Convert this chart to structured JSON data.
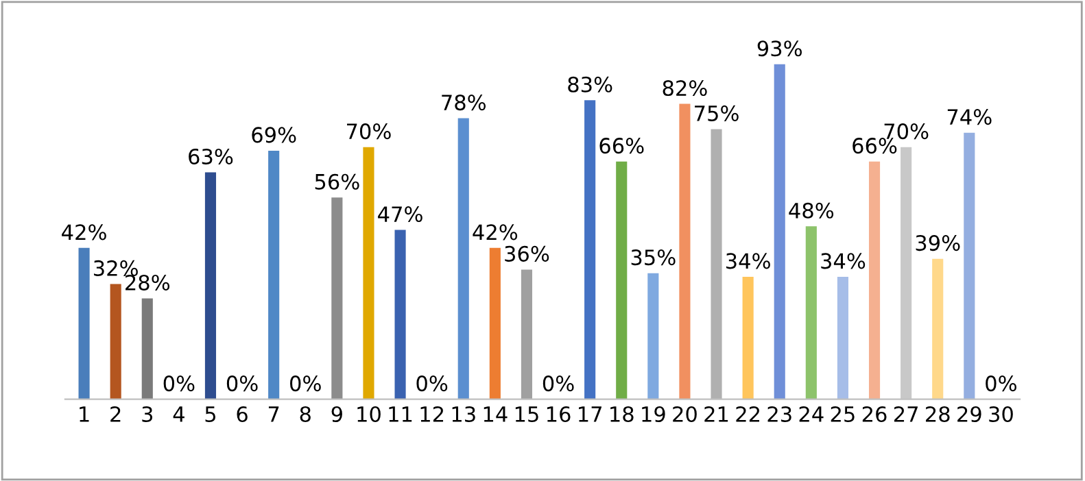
{
  "chart_data": {
    "type": "bar",
    "categories": [
      "1",
      "2",
      "3",
      "4",
      "5",
      "6",
      "7",
      "8",
      "9",
      "10",
      "11",
      "12",
      "13",
      "14",
      "15",
      "16",
      "17",
      "18",
      "19",
      "20",
      "21",
      "22",
      "23",
      "24",
      "25",
      "26",
      "27",
      "28",
      "29",
      "30"
    ],
    "values": [
      42,
      32,
      28,
      0,
      63,
      0,
      69,
      0,
      56,
      70,
      47,
      0,
      78,
      42,
      36,
      0,
      83,
      66,
      35,
      82,
      75,
      34,
      93,
      48,
      34,
      66,
      70,
      39,
      74,
      0
    ],
    "colors": [
      "#4a7ebb",
      "#b4561f",
      "#7a7a7a",
      "#d9a400",
      "#2e4d8f",
      "#5a9a3a",
      "#4f88c6",
      "#d46a20",
      "#8c8c8c",
      "#e0a800",
      "#3a62b0",
      "#5a9a3a",
      "#5b8fd0",
      "#ed7d31",
      "#a0a0a0",
      "#ffc000",
      "#4472c4",
      "#70ad47",
      "#7fa9e0",
      "#f19060",
      "#b0b0b0",
      "#ffc55c",
      "#6f8fd8",
      "#8dc36b",
      "#a6bde8",
      "#f5b090",
      "#c8c8c8",
      "#ffd88a",
      "#94aee0",
      "#b0b0b0"
    ],
    "value_labels": [
      "42%",
      "32%",
      "28%",
      "0%",
      "63%",
      "0%",
      "69%",
      "0%",
      "56%",
      "70%",
      "47%",
      "0%",
      "78%",
      "42%",
      "36%",
      "0%",
      "83%",
      "66%",
      "35%",
      "82%",
      "75%",
      "34%",
      "93%",
      "48%",
      "34%",
      "66%",
      "70%",
      "39%",
      "74%",
      "0%"
    ],
    "tick_labels": "x",
    "grid": false,
    "legend": false
  }
}
